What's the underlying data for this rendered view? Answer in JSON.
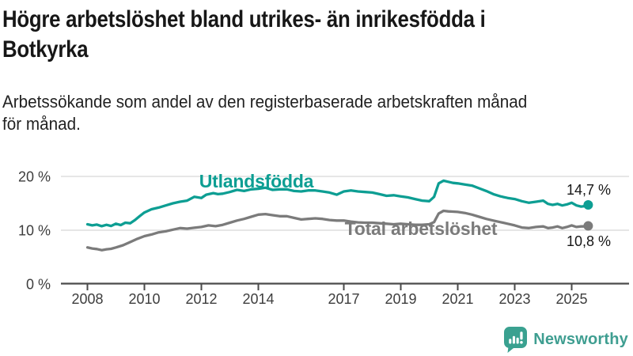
{
  "header": {
    "title_lines": [
      "Högre arbetslöshet bland utrikes- än inrikesfödda i",
      "Botkyrka"
    ],
    "subtitle_lines": [
      "Arbetssökande som andel av den registerbaserade arbetskraften månad",
      "för månad."
    ]
  },
  "chart_data": {
    "type": "line",
    "title": "Högre arbetslöshet bland utrikes- än inrikesfödda i Botkyrka",
    "subtitle": "Arbetssökande som andel av den registerbaserade arbetskraften månad för månad.",
    "unit": "%",
    "grid": true,
    "legend_position": "inline-labels",
    "x_axis": {
      "range": [
        2008,
        2026
      ],
      "ticks": [
        2008,
        2010,
        2012,
        2014,
        2017,
        2019,
        2021,
        2023,
        2025
      ]
    },
    "y_axis": {
      "range": [
        0,
        21.5
      ],
      "ticks": [
        {
          "value": 0,
          "label": "0 %"
        },
        {
          "value": 10,
          "label": "10 %"
        },
        {
          "value": 20,
          "label": "20 %"
        }
      ]
    },
    "series": [
      {
        "name": "Utlandsfödda",
        "color": "#0d9e93",
        "end_label": "14,7 %",
        "end_value": 14.7,
        "points": [
          [
            2008.0,
            11.1
          ],
          [
            2008.17,
            10.9
          ],
          [
            2008.33,
            11.05
          ],
          [
            2008.5,
            10.75
          ],
          [
            2008.67,
            11.0
          ],
          [
            2008.83,
            10.8
          ],
          [
            2009.0,
            11.2
          ],
          [
            2009.17,
            10.95
          ],
          [
            2009.33,
            11.4
          ],
          [
            2009.5,
            11.3
          ],
          [
            2009.67,
            11.9
          ],
          [
            2009.83,
            12.6
          ],
          [
            2010.0,
            13.3
          ],
          [
            2010.25,
            13.9
          ],
          [
            2010.5,
            14.2
          ],
          [
            2010.75,
            14.6
          ],
          [
            2011.0,
            15.0
          ],
          [
            2011.25,
            15.3
          ],
          [
            2011.5,
            15.5
          ],
          [
            2011.75,
            16.2
          ],
          [
            2012.0,
            16.0
          ],
          [
            2012.17,
            16.6
          ],
          [
            2012.42,
            16.9
          ],
          [
            2012.58,
            16.7
          ],
          [
            2012.75,
            16.8
          ],
          [
            2013.0,
            17.1
          ],
          [
            2013.25,
            17.5
          ],
          [
            2013.5,
            17.3
          ],
          [
            2013.75,
            17.6
          ],
          [
            2014.0,
            17.7
          ],
          [
            2014.25,
            17.9
          ],
          [
            2014.5,
            17.5
          ],
          [
            2014.75,
            17.6
          ],
          [
            2015.0,
            17.6
          ],
          [
            2015.25,
            17.3
          ],
          [
            2015.5,
            17.2
          ],
          [
            2015.75,
            17.4
          ],
          [
            2016.0,
            17.4
          ],
          [
            2016.25,
            17.2
          ],
          [
            2016.5,
            17.0
          ],
          [
            2016.75,
            16.6
          ],
          [
            2017.0,
            17.2
          ],
          [
            2017.25,
            17.4
          ],
          [
            2017.5,
            17.2
          ],
          [
            2017.75,
            17.1
          ],
          [
            2018.0,
            17.0
          ],
          [
            2018.25,
            16.7
          ],
          [
            2018.5,
            16.4
          ],
          [
            2018.75,
            16.5
          ],
          [
            2019.0,
            16.3
          ],
          [
            2019.25,
            16.1
          ],
          [
            2019.5,
            15.8
          ],
          [
            2019.75,
            15.5
          ],
          [
            2020.0,
            15.4
          ],
          [
            2020.17,
            16.2
          ],
          [
            2020.33,
            18.7
          ],
          [
            2020.5,
            19.2
          ],
          [
            2020.67,
            19.0
          ],
          [
            2020.83,
            18.8
          ],
          [
            2021.0,
            18.7
          ],
          [
            2021.25,
            18.5
          ],
          [
            2021.5,
            18.3
          ],
          [
            2021.75,
            17.8
          ],
          [
            2022.0,
            17.3
          ],
          [
            2022.25,
            16.7
          ],
          [
            2022.5,
            16.3
          ],
          [
            2022.75,
            16.0
          ],
          [
            2023.0,
            15.8
          ],
          [
            2023.25,
            15.4
          ],
          [
            2023.5,
            15.1
          ],
          [
            2023.75,
            15.3
          ],
          [
            2024.0,
            15.5
          ],
          [
            2024.17,
            14.9
          ],
          [
            2024.33,
            14.7
          ],
          [
            2024.5,
            14.9
          ],
          [
            2024.67,
            14.6
          ],
          [
            2024.83,
            14.8
          ],
          [
            2025.0,
            15.1
          ],
          [
            2025.17,
            14.6
          ],
          [
            2025.33,
            14.4
          ],
          [
            2025.5,
            14.5
          ],
          [
            2025.58,
            14.7
          ]
        ]
      },
      {
        "name": "Total arbetslöshet",
        "color": "#7b7b7b",
        "end_label": "10,8 %",
        "end_value": 10.8,
        "points": [
          [
            2008.0,
            6.8
          ],
          [
            2008.17,
            6.6
          ],
          [
            2008.33,
            6.5
          ],
          [
            2008.5,
            6.3
          ],
          [
            2008.67,
            6.45
          ],
          [
            2008.83,
            6.55
          ],
          [
            2009.0,
            6.8
          ],
          [
            2009.25,
            7.2
          ],
          [
            2009.5,
            7.8
          ],
          [
            2009.75,
            8.4
          ],
          [
            2010.0,
            8.9
          ],
          [
            2010.25,
            9.2
          ],
          [
            2010.5,
            9.6
          ],
          [
            2010.75,
            9.8
          ],
          [
            2011.0,
            10.1
          ],
          [
            2011.25,
            10.4
          ],
          [
            2011.5,
            10.3
          ],
          [
            2011.75,
            10.45
          ],
          [
            2012.0,
            10.6
          ],
          [
            2012.25,
            10.9
          ],
          [
            2012.5,
            10.75
          ],
          [
            2012.75,
            11.0
          ],
          [
            2013.0,
            11.4
          ],
          [
            2013.25,
            11.8
          ],
          [
            2013.5,
            12.1
          ],
          [
            2013.75,
            12.5
          ],
          [
            2014.0,
            12.9
          ],
          [
            2014.25,
            13.0
          ],
          [
            2014.5,
            12.8
          ],
          [
            2014.75,
            12.6
          ],
          [
            2015.0,
            12.6
          ],
          [
            2015.25,
            12.3
          ],
          [
            2015.5,
            12.0
          ],
          [
            2015.75,
            12.1
          ],
          [
            2016.0,
            12.2
          ],
          [
            2016.25,
            12.1
          ],
          [
            2016.5,
            11.9
          ],
          [
            2016.75,
            11.8
          ],
          [
            2017.0,
            11.8
          ],
          [
            2017.25,
            11.6
          ],
          [
            2017.5,
            11.45
          ],
          [
            2017.75,
            11.4
          ],
          [
            2018.0,
            11.4
          ],
          [
            2018.25,
            11.3
          ],
          [
            2018.5,
            11.2
          ],
          [
            2018.75,
            11.1
          ],
          [
            2019.0,
            11.2
          ],
          [
            2019.25,
            11.1
          ],
          [
            2019.5,
            11.0
          ],
          [
            2019.75,
            11.0
          ],
          [
            2020.0,
            11.1
          ],
          [
            2020.17,
            11.5
          ],
          [
            2020.33,
            13.1
          ],
          [
            2020.5,
            13.6
          ],
          [
            2020.67,
            13.5
          ],
          [
            2020.83,
            13.45
          ],
          [
            2021.0,
            13.4
          ],
          [
            2021.25,
            13.2
          ],
          [
            2021.5,
            12.9
          ],
          [
            2021.75,
            12.5
          ],
          [
            2022.0,
            12.1
          ],
          [
            2022.25,
            11.8
          ],
          [
            2022.5,
            11.5
          ],
          [
            2022.75,
            11.2
          ],
          [
            2023.0,
            10.9
          ],
          [
            2023.25,
            10.5
          ],
          [
            2023.5,
            10.4
          ],
          [
            2023.75,
            10.6
          ],
          [
            2024.0,
            10.7
          ],
          [
            2024.17,
            10.4
          ],
          [
            2024.33,
            10.5
          ],
          [
            2024.5,
            10.7
          ],
          [
            2024.67,
            10.4
          ],
          [
            2024.83,
            10.6
          ],
          [
            2025.0,
            10.9
          ],
          [
            2025.17,
            10.6
          ],
          [
            2025.33,
            10.7
          ],
          [
            2025.5,
            10.7
          ],
          [
            2025.58,
            10.8
          ]
        ]
      }
    ]
  },
  "footer": {
    "brand": "Newsworthy",
    "brand_color": "#3f9e91",
    "logo_icon": "bar-chart-speech-bubble-icon"
  }
}
